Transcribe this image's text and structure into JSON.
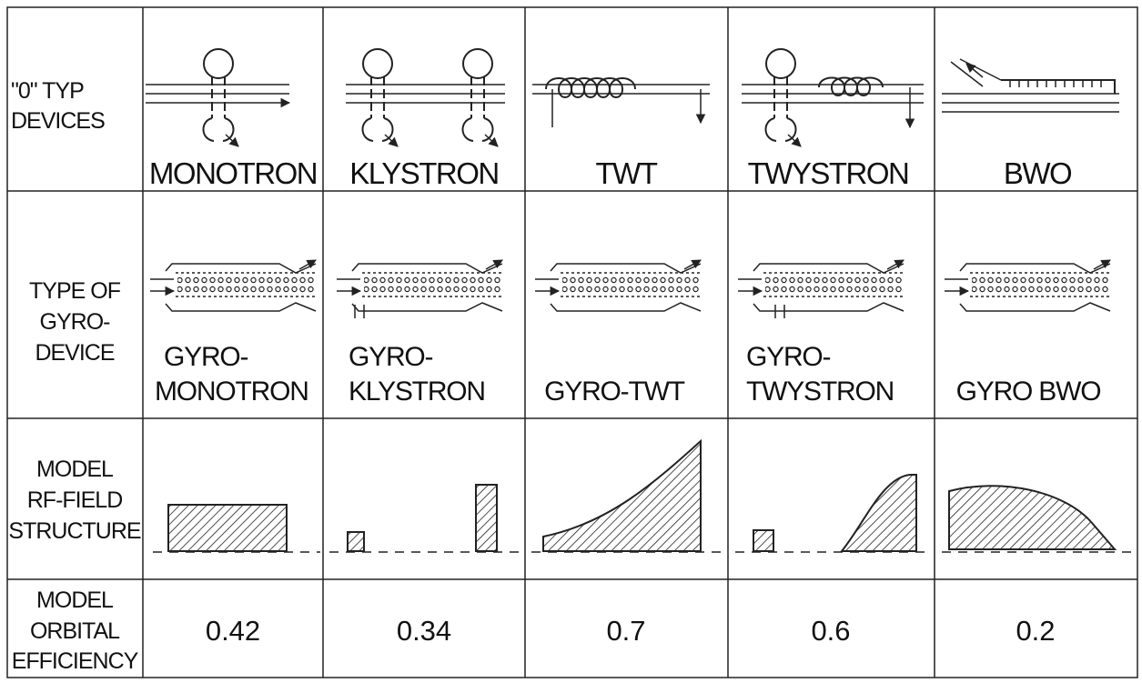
{
  "header_row": {
    "label": [
      "\"0\" TYP",
      "DEVICES"
    ],
    "devices": [
      "MONOTRON",
      "KLYSTRON",
      "TWT",
      "TWYSTRON",
      "BWO"
    ]
  },
  "gyro_row": {
    "label": [
      "TYPE OF",
      "GYRO-",
      "DEVICE"
    ],
    "devices": [
      [
        "GYRO-",
        "MONOTRON"
      ],
      [
        "GYRO-",
        "KLYSTRON"
      ],
      "GYRO-TWT",
      [
        "GYRO-",
        "TWYSTRON"
      ],
      "GYRO BWO"
    ]
  },
  "field_row": {
    "label": [
      "MODEL",
      "RF-FIELD",
      "STRUCTURE"
    ]
  },
  "efficiency_row": {
    "label": [
      "MODEL",
      "ORBITAL",
      "EFFICIENCY"
    ],
    "values": [
      "0.42",
      "0.34",
      "0.7",
      "0.6",
      "0.2"
    ]
  }
}
